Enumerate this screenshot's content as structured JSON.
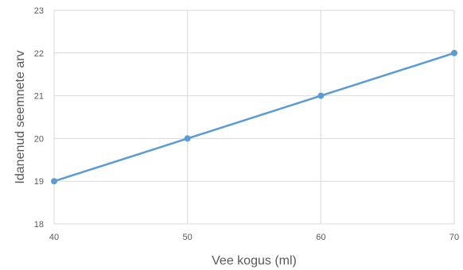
{
  "chart_data": {
    "type": "line",
    "xlabel": "Vee kogus (ml)",
    "ylabel": "Idanenud seemnete arv",
    "x": [
      40,
      50,
      60,
      70
    ],
    "series": [
      {
        "values": [
          19,
          20,
          21,
          22
        ]
      }
    ],
    "xlim": [
      40,
      70
    ],
    "ylim": [
      18,
      23
    ],
    "xticks": [
      40,
      50,
      60,
      70
    ],
    "yticks": [
      18,
      19,
      20,
      21,
      22,
      23
    ],
    "grid": true,
    "colors": {
      "series": "#5b9bd5",
      "grid": "#d9d9d9",
      "text": "#595959"
    }
  }
}
